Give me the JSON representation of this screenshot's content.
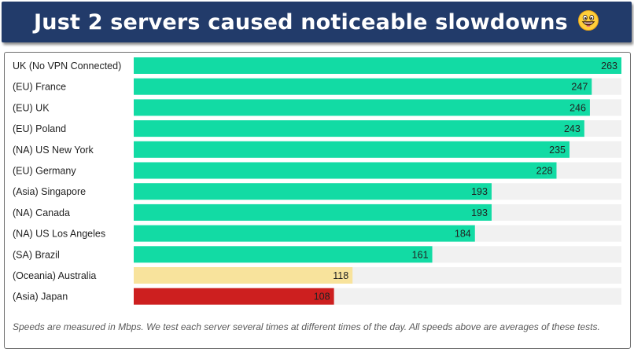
{
  "header": {
    "title": "Just 2 servers caused noticeable slowdowns",
    "emoji_icon": "grinning-face-emoji-icon"
  },
  "colors": {
    "header_bg": "#223b6a",
    "bar_good": "#12dba4",
    "bar_medium": "#f8e39c",
    "bar_bad": "#cd1f1f",
    "track": "#f1f1f1"
  },
  "chart_data": {
    "type": "bar",
    "orientation": "horizontal",
    "categories": [
      "UK (No VPN Connected)",
      "(EU) France",
      "(EU) UK",
      "(EU) Poland",
      "(NA) US New York",
      "(EU) Germany",
      "(Asia) Singapore",
      "(NA) Canada",
      "(NA) US Los Angeles",
      "(SA) Brazil",
      "(Oceania) Australia",
      "(Asia) Japan"
    ],
    "values": [
      263,
      247,
      246,
      243,
      235,
      228,
      193,
      193,
      184,
      161,
      118,
      108
    ],
    "bar_status": [
      "good",
      "good",
      "good",
      "good",
      "good",
      "good",
      "good",
      "good",
      "good",
      "good",
      "medium",
      "bad"
    ],
    "xlim": [
      0,
      263
    ],
    "grid": false,
    "legend": "none"
  },
  "footnote": "Speeds are measured in Mbps. We test each server several times at different times of the day. All speeds above are averages of these tests."
}
